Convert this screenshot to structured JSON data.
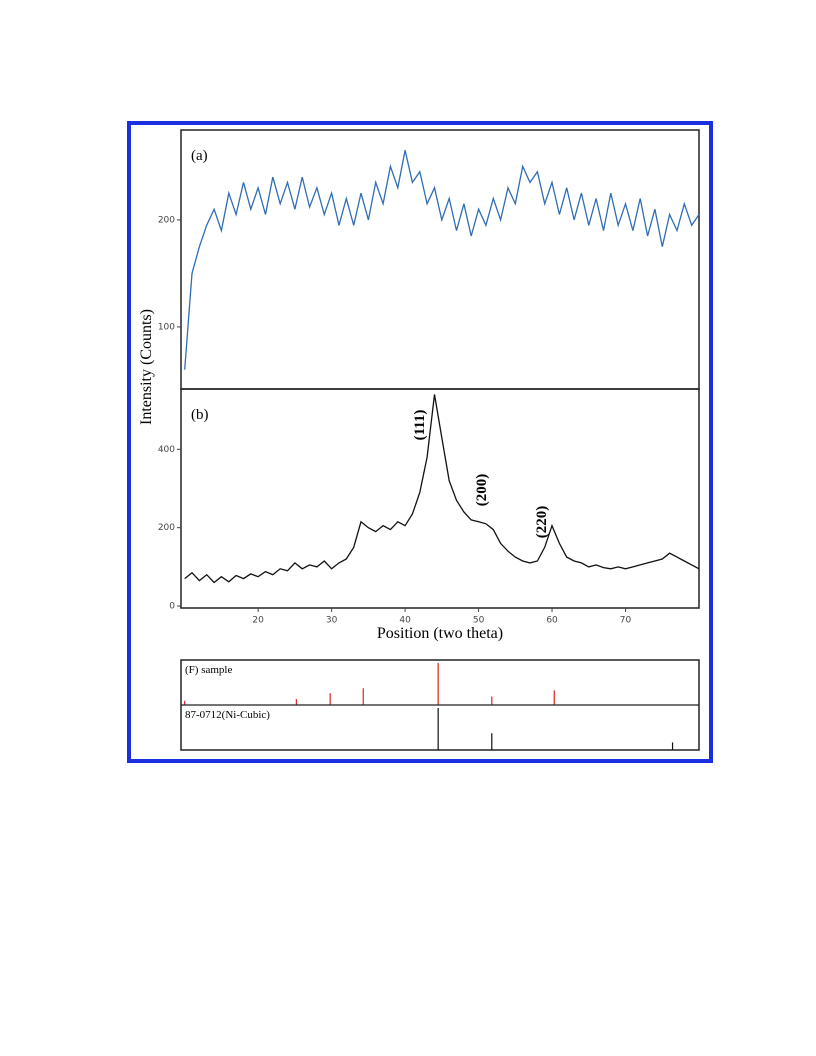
{
  "chart_data": [
    {
      "type": "line",
      "panel_label": "(a)",
      "xlim": [
        9.5,
        80
      ],
      "ylim": [
        42,
        284
      ],
      "yticks": [
        100,
        200
      ],
      "series": [
        {
          "color": "#2f6db5",
          "x": [
            10,
            11,
            12,
            13,
            14,
            15,
            16,
            17,
            18,
            19,
            20,
            21,
            22,
            23,
            24,
            25,
            26,
            27,
            28,
            29,
            30,
            31,
            32,
            33,
            34,
            35,
            36,
            37,
            38,
            39,
            40,
            41,
            42,
            43,
            44,
            45,
            46,
            47,
            48,
            49,
            50,
            51,
            52,
            53,
            54,
            55,
            56,
            57,
            58,
            59,
            60,
            61,
            62,
            63,
            64,
            65,
            66,
            67,
            68,
            69,
            70,
            71,
            72,
            73,
            74,
            75,
            76,
            77,
            78,
            79,
            80
          ],
          "values": [
            60,
            150,
            175,
            195,
            210,
            190,
            225,
            205,
            235,
            210,
            230,
            205,
            240,
            215,
            235,
            210,
            240,
            212,
            230,
            205,
            225,
            195,
            220,
            195,
            225,
            200,
            235,
            215,
            250,
            230,
            265,
            235,
            245,
            215,
            230,
            200,
            220,
            190,
            215,
            185,
            210,
            195,
            220,
            200,
            230,
            215,
            250,
            235,
            245,
            215,
            235,
            205,
            230,
            200,
            225,
            195,
            220,
            190,
            225,
            195,
            215,
            190,
            220,
            185,
            210,
            175,
            205,
            190,
            215,
            195,
            205
          ]
        }
      ]
    },
    {
      "type": "line",
      "panel_label": "(b)",
      "ylabel": "Intensity (Counts)",
      "xlabel": "Position (two theta)",
      "xlim": [
        9.5,
        80
      ],
      "ylim": [
        -5,
        554
      ],
      "xticks": [
        20,
        30,
        40,
        50,
        60,
        70
      ],
      "yticks": [
        0,
        200,
        400
      ],
      "peak_labels": [
        "(111)",
        "(200)",
        "(220)"
      ],
      "series": [
        {
          "color": "#111111",
          "x": [
            10,
            11,
            12,
            13,
            14,
            15,
            16,
            17,
            18,
            19,
            20,
            21,
            22,
            23,
            24,
            25,
            26,
            27,
            28,
            29,
            30,
            31,
            32,
            33,
            34,
            35,
            36,
            37,
            38,
            39,
            40,
            41,
            42,
            43,
            44,
            45,
            46,
            47,
            48,
            49,
            50,
            51,
            52,
            53,
            54,
            55,
            56,
            57,
            58,
            59,
            60,
            61,
            62,
            63,
            64,
            65,
            66,
            67,
            68,
            69,
            70,
            71,
            72,
            73,
            74,
            75,
            76,
            77,
            78,
            79,
            80
          ],
          "values": [
            70,
            85,
            65,
            80,
            60,
            75,
            62,
            78,
            70,
            82,
            75,
            88,
            80,
            95,
            90,
            110,
            95,
            105,
            100,
            115,
            95,
            110,
            120,
            150,
            215,
            200,
            190,
            205,
            195,
            215,
            205,
            235,
            290,
            380,
            540,
            430,
            320,
            270,
            240,
            220,
            215,
            210,
            195,
            160,
            140,
            125,
            115,
            110,
            115,
            150,
            205,
            160,
            125,
            115,
            110,
            100,
            105,
            98,
            95,
            100,
            95,
            100,
            105,
            110,
            115,
            120,
            135,
            125,
            115,
            105,
            95
          ]
        }
      ]
    },
    {
      "type": "stick",
      "xlim": [
        9.5,
        80
      ],
      "ylim": [
        0,
        100
      ],
      "series": [
        {
          "name": "(F) sample",
          "color": "#e02020",
          "x": [
            10,
            25.2,
            29.8,
            34.3,
            44.5,
            51.8,
            60.3
          ],
          "values": [
            10,
            14,
            28,
            40,
            100,
            20,
            35
          ]
        },
        {
          "name": "87-0712(Ni-Cubic)",
          "color": "#111111",
          "x": [
            44.5,
            51.8,
            76.4
          ],
          "values": [
            100,
            40,
            18
          ]
        }
      ]
    }
  ]
}
